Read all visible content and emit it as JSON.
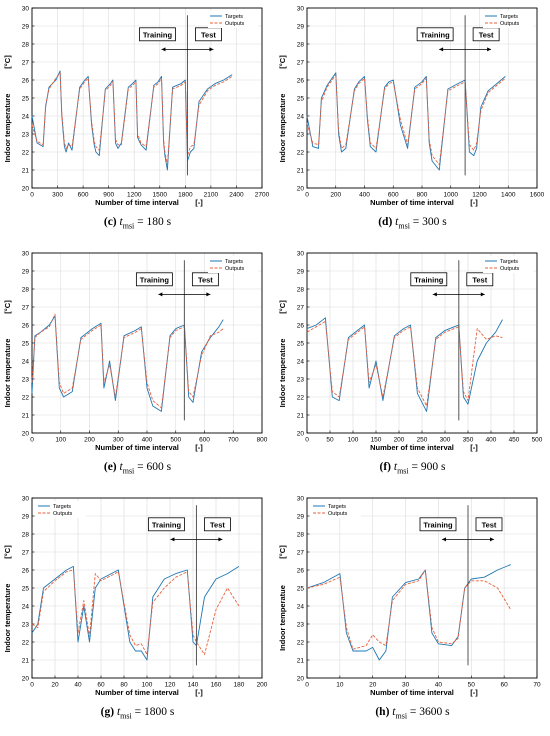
{
  "figure": {
    "legend_targets": "Targets",
    "legend_outputs": "Outputs",
    "training_label": "Training",
    "test_label": "Test",
    "xlabel": "Number of time interval",
    "xunit": "[-]",
    "ylabel_default": "Indoor temperature",
    "yunit": "[°C]",
    "colors": {
      "targets": "#1f77b4",
      "outputs": "#e8603c",
      "reference": "#555555"
    }
  },
  "chart_data": [
    {
      "type": "line",
      "panel": "(c)",
      "caption_symbol": "t",
      "caption_sub": "msi",
      "caption_value": "= 180 s",
      "ylabel": "Indoor temperature",
      "xlim": [
        0,
        2700
      ],
      "ylim": [
        20,
        30
      ],
      "xticks": [
        0,
        300,
        600,
        900,
        1200,
        1500,
        1800,
        2100,
        2400,
        2700
      ],
      "yticks": [
        20,
        21,
        22,
        23,
        24,
        25,
        26,
        27,
        28,
        29,
        30
      ],
      "legend_position": "top-right",
      "split_x": 1825,
      "series": [
        {
          "name": "Targets",
          "x": [
            0,
            60,
            130,
            160,
            200,
            280,
            330,
            350,
            380,
            400,
            430,
            470,
            560,
            620,
            660,
            700,
            730,
            750,
            790,
            860,
            920,
            950,
            980,
            1010,
            1050,
            1130,
            1180,
            1220,
            1240,
            1280,
            1340,
            1430,
            1480,
            1520,
            1545,
            1560,
            1590,
            1650,
            1750,
            1800,
            1825,
            1860,
            1900,
            1960,
            2060,
            2150,
            2250,
            2350
          ],
          "y": [
            24,
            22.5,
            22.3,
            24.5,
            25.6,
            26,
            26.5,
            24,
            22.3,
            22,
            22.5,
            22.1,
            25.6,
            26,
            26.2,
            23.5,
            22.4,
            22,
            21.8,
            25.5,
            25.8,
            26,
            22.5,
            22.2,
            22.5,
            25.6,
            25.8,
            26,
            22.8,
            22.4,
            22.1,
            25.7,
            25.9,
            26.2,
            22.5,
            21.8,
            21,
            25.6,
            25.8,
            26,
            21.5,
            22,
            22.2,
            24.8,
            25.5,
            25.8,
            26,
            26.3
          ]
        },
        {
          "name": "Outputs",
          "x": [
            0,
            60,
            130,
            160,
            200,
            280,
            330,
            350,
            380,
            400,
            430,
            470,
            560,
            620,
            660,
            700,
            730,
            750,
            790,
            860,
            920,
            950,
            980,
            1010,
            1050,
            1130,
            1180,
            1220,
            1240,
            1280,
            1340,
            1430,
            1480,
            1520,
            1545,
            1560,
            1590,
            1650,
            1750,
            1800,
            1825,
            1860,
            1900,
            1960,
            2060,
            2150,
            2250,
            2350
          ],
          "y": [
            23.5,
            22.6,
            22.4,
            24.6,
            25.5,
            26.1,
            26.4,
            24.2,
            22.5,
            22.2,
            22.4,
            22.3,
            25.5,
            25.9,
            26.1,
            23.7,
            22.6,
            22.3,
            22.1,
            25.4,
            25.7,
            25.9,
            22.7,
            22.4,
            22.4,
            25.5,
            25.7,
            25.9,
            23,
            22.5,
            22.3,
            25.6,
            25.8,
            26.1,
            22.7,
            22,
            21.3,
            25.5,
            25.7,
            25.9,
            21.8,
            22.3,
            22.4,
            24.6,
            25.4,
            25.7,
            25.9,
            26.2
          ]
        }
      ]
    },
    {
      "type": "line",
      "panel": "(d)",
      "caption_symbol": "t",
      "caption_sub": "msi",
      "caption_value": "= 300 s",
      "ylabel": "Indoor temperature",
      "xlim": [
        0,
        1600
      ],
      "ylim": [
        20,
        30
      ],
      "xticks": [
        0,
        200,
        400,
        600,
        800,
        1000,
        1200,
        1400,
        1600
      ],
      "yticks": [
        20,
        21,
        22,
        23,
        24,
        25,
        26,
        27,
        28,
        29,
        30
      ],
      "legend_position": "top-right",
      "split_x": 1100,
      "series": [
        {
          "name": "Targets",
          "x": [
            0,
            40,
            80,
            100,
            140,
            200,
            220,
            240,
            270,
            330,
            360,
            400,
            420,
            440,
            480,
            540,
            570,
            600,
            650,
            700,
            750,
            800,
            830,
            850,
            870,
            920,
            980,
            1050,
            1100,
            1130,
            1160,
            1180,
            1210,
            1260,
            1320,
            1380
          ],
          "y": [
            24,
            22.3,
            22.2,
            25,
            25.7,
            26.4,
            23,
            22,
            22.2,
            25.5,
            25.9,
            26.2,
            23.8,
            22.3,
            22,
            25.6,
            25.9,
            26,
            23.5,
            22.2,
            25.6,
            25.9,
            26.2,
            22.5,
            21.5,
            21,
            25.5,
            25.8,
            26,
            22,
            21.8,
            22.2,
            24.5,
            25.4,
            25.8,
            26.2
          ]
        },
        {
          "name": "Outputs",
          "x": [
            0,
            40,
            80,
            100,
            140,
            200,
            220,
            240,
            270,
            330,
            360,
            400,
            420,
            440,
            480,
            540,
            570,
            600,
            650,
            700,
            750,
            800,
            830,
            850,
            870,
            920,
            980,
            1050,
            1100,
            1130,
            1160,
            1180,
            1210,
            1260,
            1320,
            1380
          ],
          "y": [
            23.6,
            22.5,
            22.4,
            24.8,
            25.6,
            26.3,
            23.2,
            22.2,
            22.4,
            25.4,
            25.8,
            26.1,
            24,
            22.5,
            22.2,
            25.5,
            25.8,
            25.9,
            23.8,
            22.4,
            25.5,
            25.8,
            26.1,
            22.7,
            21.8,
            21.3,
            25.4,
            25.7,
            25.9,
            22.4,
            22.1,
            22.5,
            24.3,
            25.3,
            25.7,
            26.1
          ]
        }
      ]
    },
    {
      "type": "line",
      "panel": "(e)",
      "caption_symbol": "t",
      "caption_sub": "msi",
      "caption_value": "= 600 s",
      "ylabel": "Indoor temperature",
      "xlim": [
        0,
        800
      ],
      "ylim": [
        20,
        30
      ],
      "xticks": [
        0,
        100,
        200,
        300,
        400,
        500,
        600,
        700,
        800
      ],
      "yticks": [
        20,
        21,
        22,
        23,
        24,
        25,
        26,
        27,
        28,
        29,
        30
      ],
      "legend_position": "top-right",
      "split_x": 530,
      "series": [
        {
          "name": "Targets",
          "x": [
            0,
            10,
            30,
            60,
            80,
            95,
            110,
            140,
            170,
            210,
            240,
            250,
            270,
            290,
            320,
            360,
            380,
            400,
            420,
            450,
            480,
            500,
            530,
            545,
            560,
            590,
            620,
            650,
            665
          ],
          "y": [
            22.2,
            25.4,
            25.6,
            26,
            26.5,
            22.5,
            22,
            22.3,
            25.3,
            25.8,
            26.1,
            22.5,
            24,
            21.8,
            25.4,
            25.7,
            25.9,
            22.5,
            21.5,
            21.2,
            25.4,
            25.8,
            26,
            22,
            21.7,
            24.5,
            25.3,
            25.9,
            26.3
          ]
        },
        {
          "name": "Outputs",
          "x": [
            0,
            10,
            30,
            60,
            80,
            95,
            110,
            140,
            170,
            210,
            240,
            250,
            270,
            290,
            320,
            360,
            380,
            400,
            420,
            450,
            480,
            500,
            530,
            545,
            560,
            590,
            620,
            650,
            665
          ],
          "y": [
            22.8,
            25.3,
            25.6,
            25.9,
            26.6,
            22.8,
            22.2,
            22.5,
            25.2,
            25.7,
            26,
            22.8,
            23.8,
            22,
            25.3,
            25.6,
            25.8,
            22.8,
            21.8,
            21.4,
            25.3,
            25.7,
            25.9,
            22.3,
            22,
            24.3,
            25.4,
            25.6,
            25.8
          ]
        }
      ]
    },
    {
      "type": "line",
      "panel": "(f)",
      "caption_symbol": "t",
      "caption_sub": "msi",
      "caption_value": "= 900 s",
      "ylabel": "Indoor temperature",
      "xlim": [
        0,
        500
      ],
      "ylim": [
        20,
        30
      ],
      "xticks": [
        0,
        50,
        100,
        150,
        200,
        250,
        300,
        350,
        400,
        450,
        500
      ],
      "yticks": [
        20,
        21,
        22,
        23,
        24,
        25,
        26,
        27,
        28,
        29,
        30
      ],
      "legend_position": "top-right",
      "split_x": 330,
      "series": [
        {
          "name": "Targets",
          "x": [
            0,
            20,
            40,
            55,
            70,
            90,
            110,
            125,
            135,
            150,
            165,
            190,
            210,
            225,
            240,
            260,
            280,
            300,
            320,
            330,
            340,
            350,
            370,
            390,
            410,
            425
          ],
          "y": [
            25.8,
            26,
            26.4,
            22,
            21.8,
            25.3,
            25.7,
            26,
            22.5,
            24,
            21.8,
            25.4,
            25.8,
            26,
            22.2,
            21.2,
            25.3,
            25.7,
            25.9,
            26,
            22,
            21.6,
            24,
            25,
            25.6,
            26.3
          ]
        },
        {
          "name": "Outputs",
          "x": [
            0,
            20,
            40,
            55,
            70,
            90,
            110,
            125,
            135,
            150,
            165,
            190,
            210,
            225,
            240,
            260,
            280,
            300,
            320,
            330,
            340,
            350,
            370,
            390,
            410,
            425
          ],
          "y": [
            25.6,
            25.9,
            26.2,
            22.3,
            22,
            25.2,
            25.6,
            25.9,
            22.8,
            23.8,
            22,
            25.3,
            25.7,
            25.9,
            22.5,
            21.5,
            25.2,
            25.6,
            25.8,
            25.9,
            22.3,
            21.8,
            25.8,
            25.2,
            25.4,
            25.3
          ]
        }
      ]
    },
    {
      "type": "line",
      "panel": "(g)",
      "caption_symbol": "t",
      "caption_sub": "msi",
      "caption_value": "= 1800 s",
      "ylabel": "Indoor temperature",
      "xlim": [
        0,
        200
      ],
      "ylim": [
        20,
        30
      ],
      "xticks": [
        0,
        20,
        40,
        60,
        80,
        100,
        120,
        140,
        160,
        180,
        200
      ],
      "yticks": [
        20,
        21,
        22,
        23,
        24,
        25,
        26,
        27,
        28,
        29,
        30
      ],
      "legend_position": "top-left",
      "split_x": 143,
      "series": [
        {
          "name": "Targets",
          "x": [
            0,
            5,
            10,
            20,
            30,
            36,
            40,
            45,
            50,
            55,
            60,
            75,
            85,
            90,
            95,
            100,
            105,
            115,
            125,
            135,
            140,
            143,
            150,
            160,
            170,
            180
          ],
          "y": [
            22.5,
            23,
            25,
            25.5,
            26,
            26.2,
            22,
            24,
            22,
            25,
            25.5,
            26,
            22,
            21.5,
            21.5,
            21,
            24.5,
            25.5,
            25.8,
            26,
            22,
            21.8,
            24.5,
            25.5,
            25.8,
            26.2
          ]
        },
        {
          "name": "Outputs",
          "x": [
            0,
            5,
            10,
            20,
            30,
            36,
            40,
            45,
            50,
            55,
            60,
            75,
            85,
            90,
            95,
            100,
            105,
            115,
            125,
            135,
            140,
            143,
            150,
            160,
            170,
            180
          ],
          "y": [
            23,
            22.8,
            24.8,
            25.4,
            25.9,
            26,
            22.5,
            24.3,
            22.3,
            25.8,
            25.4,
            25.9,
            22.4,
            21.8,
            21.9,
            21.3,
            24.2,
            25,
            25.6,
            25.9,
            22.4,
            22,
            21.3,
            23.8,
            25,
            24
          ]
        }
      ]
    },
    {
      "type": "line",
      "panel": "(h)",
      "caption_symbol": "t",
      "caption_sub": "msi",
      "caption_value": "= 3600 s",
      "ylabel": "Indoor temperatue",
      "xlim": [
        0,
        70
      ],
      "ylim": [
        20,
        30
      ],
      "xticks": [
        0,
        10,
        20,
        30,
        40,
        50,
        60,
        70
      ],
      "yticks": [
        20,
        21,
        22,
        23,
        24,
        25,
        26,
        27,
        28,
        29,
        30
      ],
      "legend_position": "top-left",
      "split_x": 49,
      "series": [
        {
          "name": "Targets",
          "x": [
            0,
            5,
            10,
            12,
            14,
            18,
            20,
            22,
            24,
            26,
            30,
            34,
            36,
            38,
            40,
            44,
            46,
            48,
            50,
            54,
            58,
            62
          ],
          "y": [
            25,
            25.3,
            25.8,
            22.5,
            21.5,
            21.5,
            21.7,
            21,
            21.5,
            24.5,
            25.3,
            25.5,
            26,
            22.5,
            21.9,
            21.8,
            22.3,
            25,
            25.5,
            25.6,
            26,
            26.3
          ]
        },
        {
          "name": "Outputs",
          "x": [
            0,
            5,
            10,
            12,
            14,
            18,
            20,
            22,
            24,
            26,
            30,
            34,
            36,
            38,
            40,
            44,
            46,
            48,
            50,
            54,
            58,
            62
          ],
          "y": [
            25,
            25.2,
            25.6,
            22.8,
            21.6,
            21.8,
            22.4,
            22,
            21.8,
            24.3,
            25.2,
            25.4,
            26,
            22.8,
            22,
            21.9,
            22.2,
            25,
            25.4,
            25.4,
            25,
            23.8
          ]
        }
      ]
    }
  ]
}
